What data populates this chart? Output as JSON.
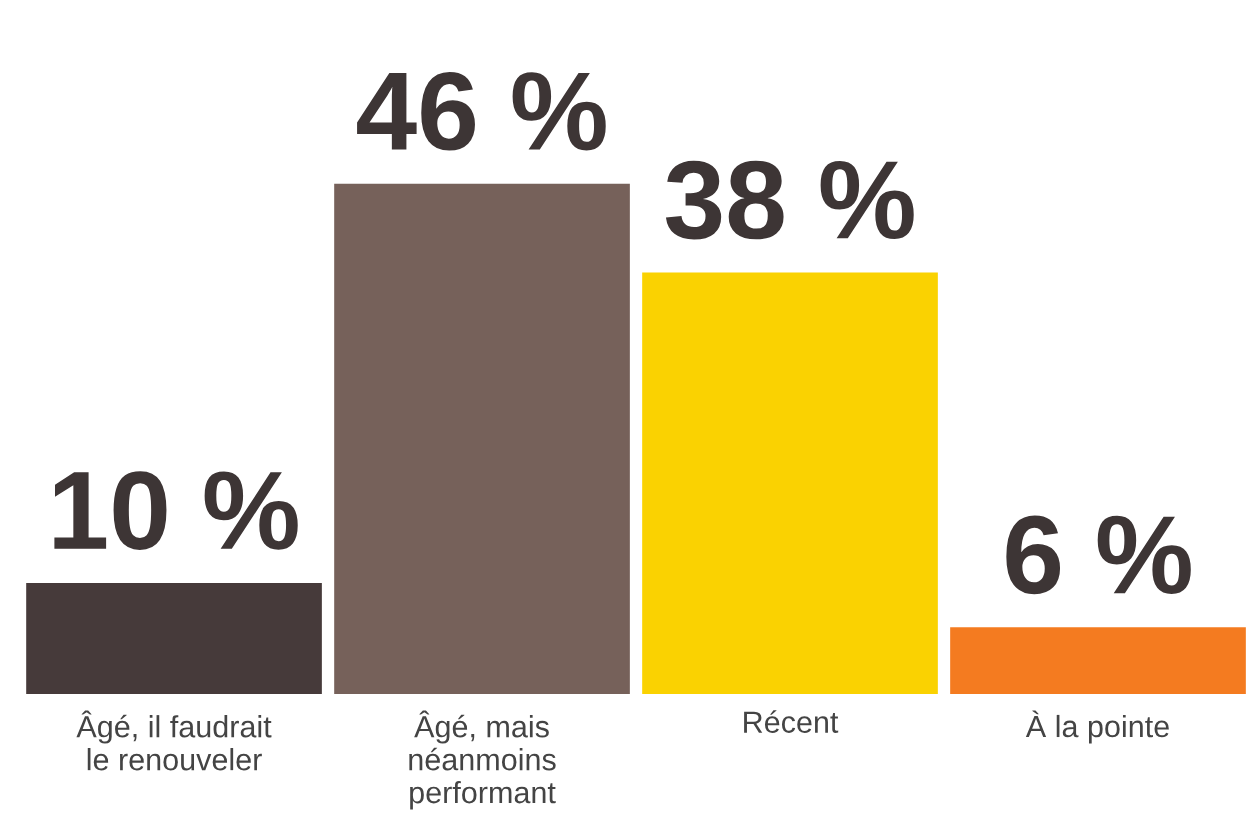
{
  "chart_data": {
    "type": "bar",
    "categories": [
      "Âgé, il faudrait\nle renouveler",
      "Âgé, mais\nnéanmoins\nperformant",
      "Récent",
      "À la pointe"
    ],
    "values": [
      10,
      46,
      38,
      6
    ],
    "colors": [
      "#463a3a",
      "#76615a",
      "#fad201",
      "#f47b20"
    ],
    "value_labels": [
      "10 %",
      "46 %",
      "38 %",
      "6 %"
    ],
    "tick_labels": "x",
    "grid": false,
    "legend": false
  }
}
